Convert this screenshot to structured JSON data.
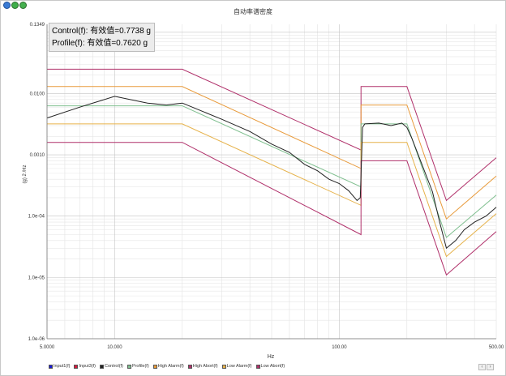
{
  "window": {
    "title": "自动率谱密度"
  },
  "readout": {
    "control": "Control(f): 有效值=0.7738 g",
    "profile": "Profile(f): 有效值=0.7620 g"
  },
  "legend": [
    {
      "label": "Input1(f)",
      "color": "#1a1ad6",
      "icon": "checkbox-icon"
    },
    {
      "label": "Input3(f)",
      "color": "#d61a3c",
      "icon": "checkbox-icon"
    },
    {
      "label": "Control(f)",
      "color": "#222222",
      "icon": "checkbox-icon"
    },
    {
      "label": "Profile(f)",
      "color": "#7fbf8f",
      "icon": "checkbox-icon"
    },
    {
      "label": "High Alarm(f)",
      "color": "#e89a3a",
      "icon": "checkbox-icon"
    },
    {
      "label": "High Abort(f)",
      "color": "#b0306a",
      "icon": "checkbox-icon"
    },
    {
      "label": "Low Alarm(f)",
      "color": "#e6b24a",
      "icon": "checkbox-icon"
    },
    {
      "label": "Low Abort(f)",
      "color": "#b0306a",
      "icon": "checkbox-icon"
    }
  ],
  "scroll": {
    "left": "‹",
    "right": "›"
  },
  "chart_data": {
    "type": "line",
    "title": "自动率谱密度",
    "xlabel": "Hz",
    "ylabel": "(g) 2 /Hz",
    "x_scale": "log",
    "y_scale": "log",
    "xlim": [
      5,
      500
    ],
    "ylim": [
      1e-06,
      0.1349
    ],
    "x_tick_labels": [
      {
        "value": 5,
        "label": "5.0000"
      },
      {
        "value": 10,
        "label": "10.000"
      },
      {
        "value": 100,
        "label": "100.00"
      },
      {
        "value": 500,
        "label": "500.00"
      }
    ],
    "y_tick_labels": [
      {
        "value": 0.1349,
        "label": "0.1349"
      },
      {
        "value": 0.01,
        "label": "0.0100"
      },
      {
        "value": 0.001,
        "label": "0.0010"
      },
      {
        "value": 0.0001,
        "label": "1.0e-04"
      },
      {
        "value": 1e-05,
        "label": "1.0e-05"
      },
      {
        "value": 1e-06,
        "label": "1.0e-06"
      }
    ],
    "grid": true,
    "series": [
      {
        "name": "High Abort(f)",
        "color": "#b0306a",
        "x": [
          5,
          20,
          125,
          125,
          200,
          300,
          500
        ],
        "y": [
          0.025,
          0.025,
          0.0012,
          0.013,
          0.013,
          0.00018,
          0.0009
        ]
      },
      {
        "name": "High Alarm(f)",
        "color": "#e89a3a",
        "x": [
          5,
          20,
          125,
          125,
          200,
          300,
          500
        ],
        "y": [
          0.013,
          0.013,
          0.0006,
          0.0065,
          0.0065,
          9e-05,
          0.00045
        ]
      },
      {
        "name": "Profile(f)",
        "color": "#7fbf8f",
        "x": [
          5,
          20,
          125,
          125,
          200,
          300,
          500
        ],
        "y": [
          0.0063,
          0.0063,
          0.0003,
          0.0032,
          0.0032,
          4.5e-05,
          0.00022
        ]
      },
      {
        "name": "Low Alarm(f)",
        "color": "#e6b24a",
        "x": [
          5,
          20,
          125,
          125,
          200,
          300,
          500
        ],
        "y": [
          0.0032,
          0.0032,
          0.00015,
          0.0016,
          0.0016,
          2.2e-05,
          0.00011
        ]
      },
      {
        "name": "Low Abort(f)",
        "color": "#b0306a",
        "x": [
          5,
          20,
          125,
          125,
          200,
          300,
          500
        ],
        "y": [
          0.0016,
          0.0016,
          5e-05,
          0.0008,
          0.0008,
          1.1e-05,
          5.6e-05
        ]
      },
      {
        "name": "Control(f)",
        "color": "#222222",
        "x": [
          5,
          7,
          10,
          14,
          17,
          20,
          25,
          30,
          40,
          50,
          60,
          70,
          80,
          90,
          100,
          110,
          120,
          124,
          127,
          130,
          150,
          170,
          190,
          200,
          210,
          230,
          260,
          280,
          300,
          330,
          360,
          400,
          450,
          500
        ],
        "y": [
          0.004,
          0.006,
          0.009,
          0.007,
          0.0065,
          0.007,
          0.005,
          0.0038,
          0.0024,
          0.0015,
          0.0011,
          0.0007,
          0.00055,
          0.0004,
          0.00034,
          0.00026,
          0.00018,
          0.0002,
          0.0028,
          0.0032,
          0.0033,
          0.003,
          0.0033,
          0.0028,
          0.0019,
          0.0008,
          0.00025,
          8e-05,
          3e-05,
          4e-05,
          6e-05,
          8e-05,
          0.0001,
          0.00014
        ]
      }
    ]
  }
}
